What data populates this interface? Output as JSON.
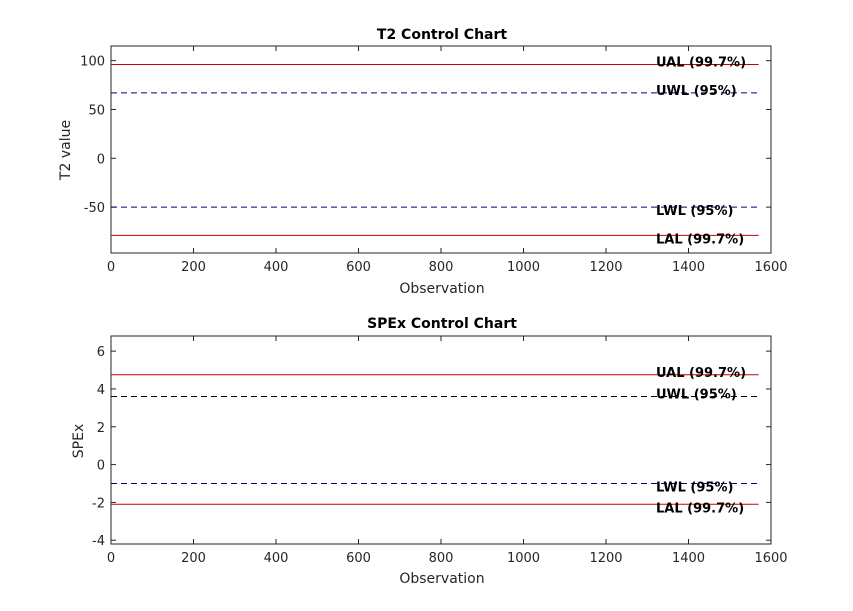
{
  "chart_data": [
    {
      "type": "line",
      "title": "T2 Control Chart",
      "xlabel": "Observation",
      "ylabel": "T2 value",
      "xlim": [
        0,
        1600
      ],
      "ylim": [
        -97,
        115
      ],
      "xticks": [
        0,
        200,
        400,
        600,
        800,
        1000,
        1200,
        1400,
        1600
      ],
      "yticks": [
        100,
        50,
        0,
        -50
      ],
      "grid": false,
      "series": [
        {
          "name": "UAL (99.7%)",
          "y": 96,
          "x": [
            0,
            1570
          ],
          "color": "#cc0000",
          "dash": "solid"
        },
        {
          "name": "UWL (95%)",
          "y": 67,
          "x": [
            0,
            1570
          ],
          "color": "#000080",
          "dash": "dashed"
        },
        {
          "name": "LWL (95%)",
          "y": -50,
          "x": [
            0,
            1570
          ],
          "color": "#000080",
          "dash": "dashed"
        },
        {
          "name": "LAL (99.7%)",
          "y": -79,
          "x": [
            0,
            1570
          ],
          "color": "#cc0000",
          "dash": "solid"
        }
      ]
    },
    {
      "type": "line",
      "title": "SPEx Control Chart",
      "xlabel": "Observation",
      "ylabel": "SPEx",
      "xlim": [
        0,
        1600
      ],
      "ylim": [
        -4.2,
        6.8
      ],
      "xticks": [
        0,
        200,
        400,
        600,
        800,
        1000,
        1200,
        1400,
        1600
      ],
      "yticks": [
        6,
        4,
        2,
        0,
        -2,
        -4
      ],
      "grid": false,
      "series": [
        {
          "name": "UAL (99.7%)",
          "y": 4.75,
          "x": [
            0,
            1570
          ],
          "color": "#cc0000",
          "dash": "solid"
        },
        {
          "name": "UWL (95%)",
          "y": 3.6,
          "x": [
            0,
            1570
          ],
          "color": "#000000",
          "dash": "dashed"
        },
        {
          "name": "LWL (95%)",
          "y": -1.0,
          "x": [
            0,
            1570
          ],
          "color": "#000080",
          "dash": "dashed"
        },
        {
          "name": "LAL (99.7%)",
          "y": -2.1,
          "x": [
            0,
            1570
          ],
          "color": "#cc0000",
          "dash": "solid"
        }
      ]
    }
  ]
}
